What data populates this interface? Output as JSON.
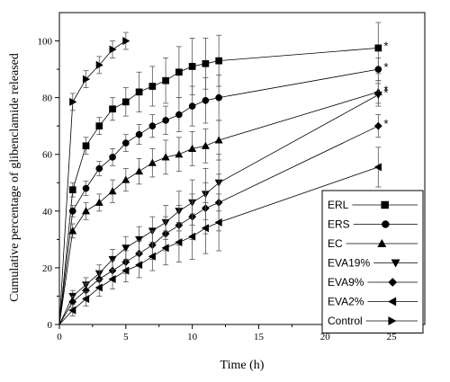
{
  "chart_data": {
    "type": "line",
    "xlabel": "Time (h)",
    "ylabel": "Cumulative percentage of glibenclamide released",
    "xlim": [
      0,
      27.5
    ],
    "ylim": [
      0,
      110
    ],
    "xticks": [
      0,
      5,
      10,
      15,
      20,
      25
    ],
    "yticks": [
      0,
      20,
      40,
      60,
      80,
      100
    ],
    "legend_position": "bottom-right",
    "grid": false,
    "series": [
      {
        "name": "ERL",
        "marker": "square",
        "points": [
          [
            0,
            0
          ],
          [
            1,
            47.5
          ],
          [
            2,
            63
          ],
          [
            3,
            70
          ],
          [
            4,
            76
          ],
          [
            5,
            78.5
          ],
          [
            6,
            82
          ],
          [
            7,
            84
          ],
          [
            8,
            86
          ],
          [
            9,
            89
          ],
          [
            10,
            91
          ],
          [
            11,
            92
          ],
          [
            12,
            93
          ],
          [
            24,
            97.5
          ]
        ],
        "errors": [
          0,
          2.5,
          3,
          3,
          4,
          5,
          7,
          7,
          8,
          9,
          10,
          9,
          9,
          9
        ],
        "annotation": "*"
      },
      {
        "name": "ERS",
        "marker": "circle",
        "points": [
          [
            0,
            0
          ],
          [
            1,
            40
          ],
          [
            2,
            48
          ],
          [
            3,
            55
          ],
          [
            4,
            59
          ],
          [
            5,
            64
          ],
          [
            6,
            67
          ],
          [
            7,
            70
          ],
          [
            8,
            72
          ],
          [
            9,
            74
          ],
          [
            10,
            77
          ],
          [
            11,
            79
          ],
          [
            12,
            80
          ],
          [
            24,
            90
          ]
        ],
        "errors": [
          0,
          2,
          2.5,
          2.5,
          3,
          3,
          3.5,
          4,
          5,
          6,
          7,
          8,
          8,
          4
        ],
        "annotation": "*"
      },
      {
        "name": "EC",
        "marker": "triangle-up",
        "points": [
          [
            0,
            0
          ],
          [
            1,
            33
          ],
          [
            2,
            40
          ],
          [
            3,
            43
          ],
          [
            4,
            47
          ],
          [
            5,
            51
          ],
          [
            6,
            54
          ],
          [
            7,
            57
          ],
          [
            8,
            59
          ],
          [
            9,
            60
          ],
          [
            10,
            62
          ],
          [
            11,
            63
          ],
          [
            12,
            65
          ],
          [
            24,
            82
          ]
        ],
        "errors": [
          0,
          2.5,
          3,
          3,
          4,
          4,
          4.5,
          5,
          6,
          6,
          6,
          6,
          7,
          4
        ],
        "annotation": "*"
      },
      {
        "name": "EVA19%",
        "marker": "triangle-down",
        "points": [
          [
            0,
            0
          ],
          [
            1,
            10
          ],
          [
            2,
            14
          ],
          [
            3,
            18
          ],
          [
            4,
            23
          ],
          [
            5,
            27
          ],
          [
            6,
            30
          ],
          [
            7,
            33
          ],
          [
            8,
            36
          ],
          [
            9,
            40
          ],
          [
            10,
            43
          ],
          [
            11,
            46
          ],
          [
            12,
            50
          ],
          [
            24,
            81
          ]
        ],
        "errors": [
          0,
          2,
          2.5,
          3,
          3.5,
          4,
          4.5,
          5,
          6,
          7,
          8,
          9,
          10,
          4
        ],
        "annotation": "*"
      },
      {
        "name": "EVA9%",
        "marker": "diamond",
        "points": [
          [
            0,
            0
          ],
          [
            1,
            8
          ],
          [
            2,
            12
          ],
          [
            3,
            16
          ],
          [
            4,
            19
          ],
          [
            5,
            22
          ],
          [
            6,
            25
          ],
          [
            7,
            28
          ],
          [
            8,
            32
          ],
          [
            9,
            35
          ],
          [
            10,
            38
          ],
          [
            11,
            41
          ],
          [
            12,
            43
          ],
          [
            24,
            70
          ]
        ],
        "errors": [
          0,
          2,
          2.5,
          3,
          3.5,
          4,
          4.5,
          5,
          6,
          7,
          8,
          9,
          10,
          4
        ],
        "annotation": "*"
      },
      {
        "name": "EVA2%",
        "marker": "triangle-left",
        "points": [
          [
            0,
            0
          ],
          [
            1,
            5
          ],
          [
            2,
            9
          ],
          [
            3,
            13
          ],
          [
            4,
            16
          ],
          [
            5,
            19
          ],
          [
            6,
            21
          ],
          [
            7,
            24
          ],
          [
            8,
            27
          ],
          [
            9,
            29
          ],
          [
            10,
            31
          ],
          [
            11,
            34
          ],
          [
            12,
            36
          ],
          [
            24,
            55.5
          ]
        ],
        "errors": [
          0,
          2,
          2.5,
          3,
          3.5,
          4,
          4.5,
          5,
          6,
          7,
          8,
          9,
          10,
          7
        ]
      },
      {
        "name": "Control",
        "marker": "triangle-right",
        "points": [
          [
            0,
            0
          ],
          [
            1,
            78.5
          ],
          [
            2,
            86.5
          ],
          [
            3,
            91.5
          ],
          [
            4,
            97
          ],
          [
            5,
            100
          ]
        ],
        "errors": [
          0,
          3,
          3,
          3,
          3,
          3
        ]
      }
    ]
  }
}
